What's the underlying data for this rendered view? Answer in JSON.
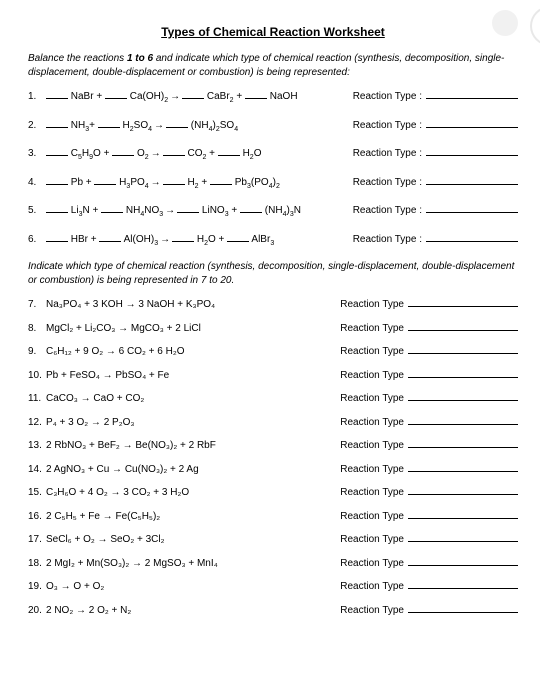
{
  "title": "Types of Chemical Reaction Worksheet",
  "instructions1_a": "Balance the reactions ",
  "instructions1_bold": "1 to 6",
  "instructions1_b": " and indicate which type of chemical reaction (synthesis, decomposition, single-displacement, double-displacement or combustion) is being represented:",
  "instructions2": "Indicate which type of chemical reaction (synthesis, decomposition, single-displacement, double-displacement or combustion) is being represented in 7 to 20.",
  "rt_label_colon": "Reaction Type :",
  "rt_label": "Reaction Type",
  "q1": {
    "n": "1.",
    "a": " NaBr + ",
    "b": " Ca(OH)",
    "c": " CaBr",
    "d": " NaOH"
  },
  "q2": {
    "n": "2.",
    "a": " NH",
    "b": " H",
    "c": "SO",
    "d": " (NH",
    "e": "SO"
  },
  "q3": {
    "n": "3.",
    "a": " C",
    "b": "H",
    "c": "O + ",
    "d": " O",
    "e": " CO",
    "f": " H",
    "g": "O"
  },
  "q4": {
    "n": "4.",
    "a": " Pb + ",
    "b": " H",
    "c": "PO",
    "d": " H",
    "e": " Pb",
    "f": "(PO"
  },
  "q5": {
    "n": "5.",
    "a": " Li",
    "b": "N + ",
    "c": " NH",
    "d": "NO",
    "e": " LiNO",
    "f": " (NH",
    "g": "N"
  },
  "q6": {
    "n": "6.",
    "a": " HBr + ",
    "b": " Al(OH)",
    "c": " H",
    "d": "O + ",
    "e": " AlBr"
  },
  "q7": {
    "n": "7.",
    "eq": "Na₃PO₄ + 3 KOH → 3 NaOH + K₃PO₄"
  },
  "q8": {
    "n": "8.",
    "eq": "MgCl₂ + Li₂CO₃ → MgCO₃ + 2 LiCl"
  },
  "q9": {
    "n": "9.",
    "eq": "C₆H₁₂ + 9 O₂ → 6 CO₂ + 6 H₂O"
  },
  "q10": {
    "n": "10.",
    "eq": "Pb + FeSO₄ → PbSO₄ + Fe"
  },
  "q11": {
    "n": "11.",
    "eq": "CaCO₃ → CaO + CO₂"
  },
  "q12": {
    "n": "12.",
    "eq": "P₄ +  3 O₂ → 2 P₂O₃"
  },
  "q13": {
    "n": "13.",
    "eq": "2 RbNO₃ + BeF₂ → Be(NO₃)₂ + 2 RbF"
  },
  "q14": {
    "n": "14.",
    "eq": "2 AgNO₃ + Cu → Cu(NO₃)₂ + 2 Ag"
  },
  "q15": {
    "n": "15.",
    "eq": "C₃H₆O + 4 O₂ → 3 CO₂ + 3 H₂O"
  },
  "q16": {
    "n": "16.",
    "eq": "2 C₅H₅ + Fe → Fe(C₅H₅)₂"
  },
  "q17": {
    "n": "17.",
    "eq": "SeCl₆ + O₂ → SeO₂ + 3Cl₂"
  },
  "q18": {
    "n": "18.",
    "eq": "2 MgI₂ + Mn(SO₃)₂ → 2 MgSO₃ + MnI₄"
  },
  "q19": {
    "n": "19.",
    "eq": "O₃  → O + O₂"
  },
  "q20": {
    "n": "20.",
    "eq": "2 NO₂ → 2 O₂ + N₂"
  }
}
